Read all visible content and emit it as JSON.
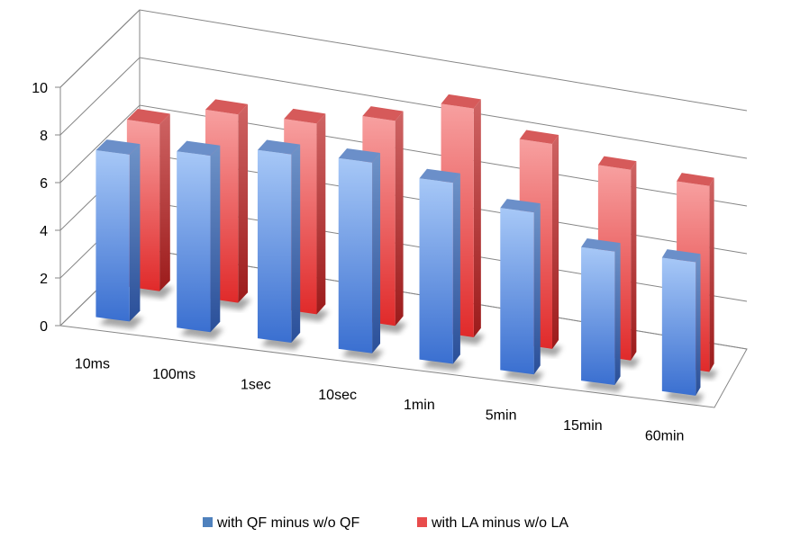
{
  "chart_data": {
    "type": "bar",
    "style": "3d-clustered-column",
    "title": "",
    "xlabel": "",
    "ylabel": "",
    "categories": [
      "10ms",
      "100ms",
      "1sec",
      "10sec",
      "1min",
      "5min",
      "15min",
      "60min"
    ],
    "series": [
      {
        "name": "with QF minus w/o QF",
        "color": "#4f81bd",
        "values": [
          7.0,
          7.4,
          7.9,
          8.0,
          7.6,
          6.8,
          5.6,
          5.6
        ]
      },
      {
        "name": "with LA minus w/o LA",
        "color": "#e84c4c",
        "values": [
          7.0,
          7.9,
          8.0,
          8.6,
          9.6,
          8.6,
          8.0,
          7.8
        ]
      }
    ],
    "ylim": [
      0,
      10
    ],
    "yticks": [
      "0",
      "2",
      "4",
      "6",
      "8",
      "10"
    ],
    "grid": true,
    "legend_position": "bottom"
  }
}
